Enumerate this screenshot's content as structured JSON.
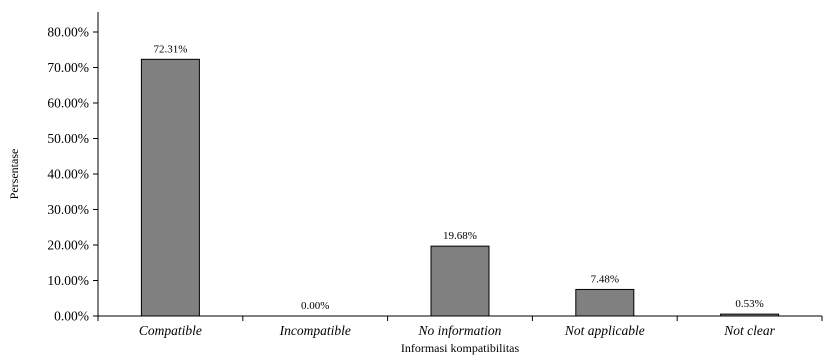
{
  "chart_data": {
    "type": "bar",
    "categories": [
      "Compatible",
      "Incompatible",
      "No information",
      "Not applicable",
      "Not clear"
    ],
    "values": [
      72.31,
      0.0,
      19.68,
      7.48,
      0.53
    ],
    "data_labels": [
      "72.31%",
      "0.00%",
      "19.68%",
      "7.48%",
      "0.53%"
    ],
    "title": "",
    "xlabel": "Informasi kompatibilitas",
    "ylabel": "Persentase",
    "ylim": [
      0,
      80
    ],
    "yticks": [
      0,
      10,
      20,
      30,
      40,
      50,
      60,
      70,
      80
    ],
    "ytick_labels": [
      "0.00%",
      "10.00%",
      "20.00%",
      "30.00%",
      "40.00%",
      "50.00%",
      "60.00%",
      "70.00%",
      "80.00%"
    ],
    "grid": false,
    "legend": "none",
    "colors": {
      "bar_fill": "#808080",
      "bar_stroke": "#000000"
    }
  }
}
